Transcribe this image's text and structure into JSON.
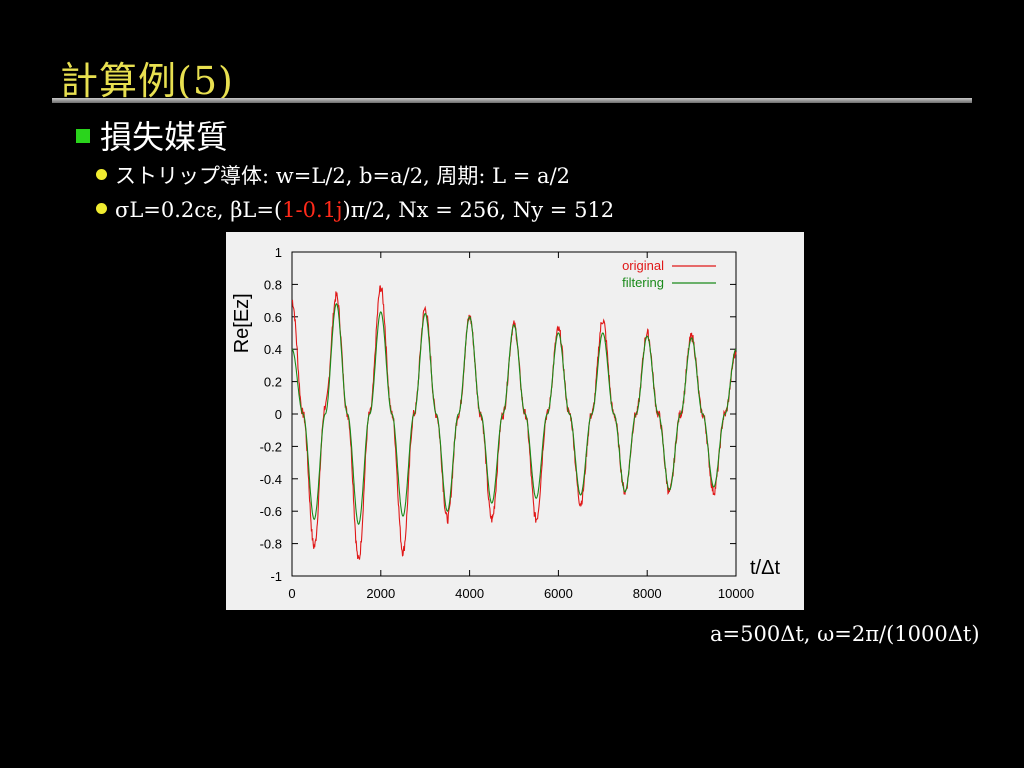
{
  "slide": {
    "title": "計算例(5)",
    "bullet": "損失媒質",
    "sub1": {
      "label": "ストリップ導体:",
      "text": "w=L/2,  b=a/2,  周期: L = a/2"
    },
    "sub2": {
      "prefix": "σL=0.2cε, βL=(",
      "red": "1-0.1j",
      "suffix": ")π/2,  Nx = 256,  Ny = 512"
    },
    "formula": "a=500Δt,  ω=2π/(1000Δt)"
  },
  "colors": {
    "title": "#e8e050",
    "bullet_square": "#2ad41c",
    "sub_dot": "#f0ec30",
    "original": "#e01818",
    "filtering": "#1a8a1a",
    "plot_bg": "#f0f0f0"
  },
  "chart_data": {
    "type": "line",
    "ylabel": "Re[Ez]",
    "xlabel": "t/Δt",
    "xlim": [
      0,
      10000
    ],
    "ylim": [
      -1,
      1
    ],
    "xticks": [
      "0",
      "2000",
      "4000",
      "6000",
      "8000",
      "10000"
    ],
    "yticks": [
      "1",
      "0.8",
      "0.6",
      "0.4",
      "0.2",
      "0",
      "-0.2",
      "-0.4",
      "-0.6",
      "-0.8",
      "-1"
    ],
    "legend_position": "top-right",
    "series": [
      {
        "name": "original",
        "x": [
          0,
          250,
          500,
          750,
          1000,
          1250,
          1500,
          1750,
          2000,
          2250,
          2500,
          2750,
          3000,
          3250,
          3500,
          3750,
          4000,
          4250,
          4500,
          4750,
          5000,
          5250,
          5500,
          5750,
          6000,
          6250,
          6500,
          6750,
          7000,
          7250,
          7500,
          7750,
          8000,
          8250,
          8500,
          8750,
          9000,
          9250,
          9500,
          9750,
          10000
        ],
        "y": [
          0.7,
          0.0,
          -0.82,
          0.05,
          0.73,
          0.0,
          -0.9,
          0.0,
          0.78,
          0.0,
          -0.85,
          0.0,
          0.65,
          0.0,
          -0.65,
          0.0,
          0.6,
          0.0,
          -0.65,
          0.0,
          0.55,
          0.0,
          -0.65,
          0.0,
          0.52,
          0.0,
          -0.55,
          0.0,
          0.58,
          0.0,
          -0.48,
          0.0,
          0.5,
          0.0,
          -0.48,
          0.0,
          0.48,
          0.0,
          -0.48,
          0.0,
          0.38
        ]
      },
      {
        "name": "filtering",
        "x": [
          0,
          250,
          500,
          750,
          1000,
          1250,
          1500,
          1750,
          2000,
          2250,
          2500,
          2750,
          3000,
          3250,
          3500,
          3750,
          4000,
          4250,
          4500,
          4750,
          5000,
          5250,
          5500,
          5750,
          6000,
          6250,
          6500,
          6750,
          7000,
          7250,
          7500,
          7750,
          8000,
          8250,
          8500,
          8750,
          9000,
          9250,
          9500,
          9750,
          10000
        ],
        "y": [
          0.4,
          0.0,
          -0.65,
          0.0,
          0.68,
          0.0,
          -0.68,
          0.0,
          0.63,
          0.0,
          -0.63,
          0.0,
          0.62,
          0.0,
          -0.6,
          0.0,
          0.6,
          0.0,
          -0.55,
          0.0,
          0.55,
          0.0,
          -0.52,
          0.0,
          0.5,
          0.0,
          -0.5,
          0.0,
          0.5,
          0.0,
          -0.48,
          0.0,
          0.48,
          0.0,
          -0.47,
          0.0,
          0.47,
          0.0,
          -0.45,
          0.0,
          0.4
        ]
      }
    ]
  }
}
